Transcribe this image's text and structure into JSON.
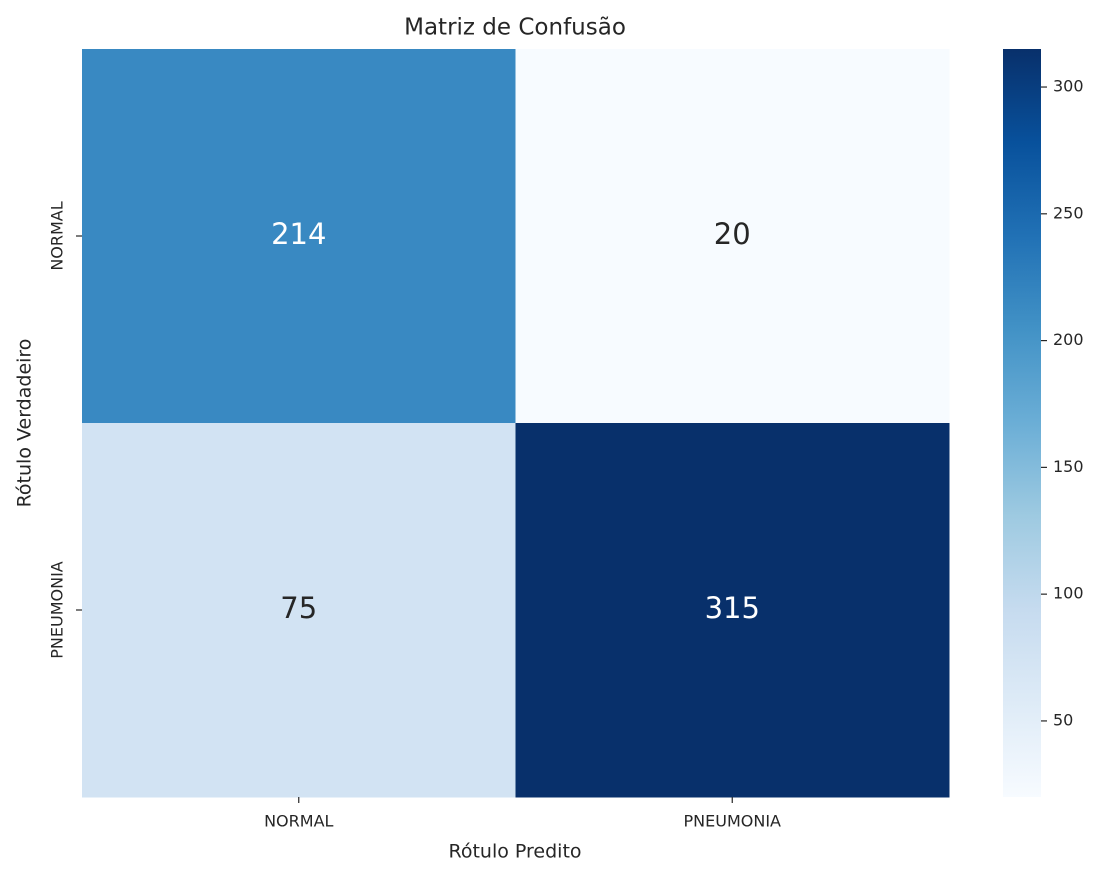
{
  "chart_data": {
    "type": "heatmap",
    "title": "Matriz de Confusão",
    "x_label": "Rótulo Predito",
    "y_label": "Rótulo Verdadeiro",
    "x_categories": [
      "NORMAL",
      "PNEUMONIA"
    ],
    "y_categories": [
      "NORMAL",
      "PNEUMONIA"
    ],
    "values": [
      [
        214,
        20
      ],
      [
        75,
        315
      ]
    ],
    "colormap": "Blues",
    "clim": [
      20,
      315
    ],
    "cticks": [
      50,
      100,
      150,
      200,
      250,
      300
    ]
  }
}
